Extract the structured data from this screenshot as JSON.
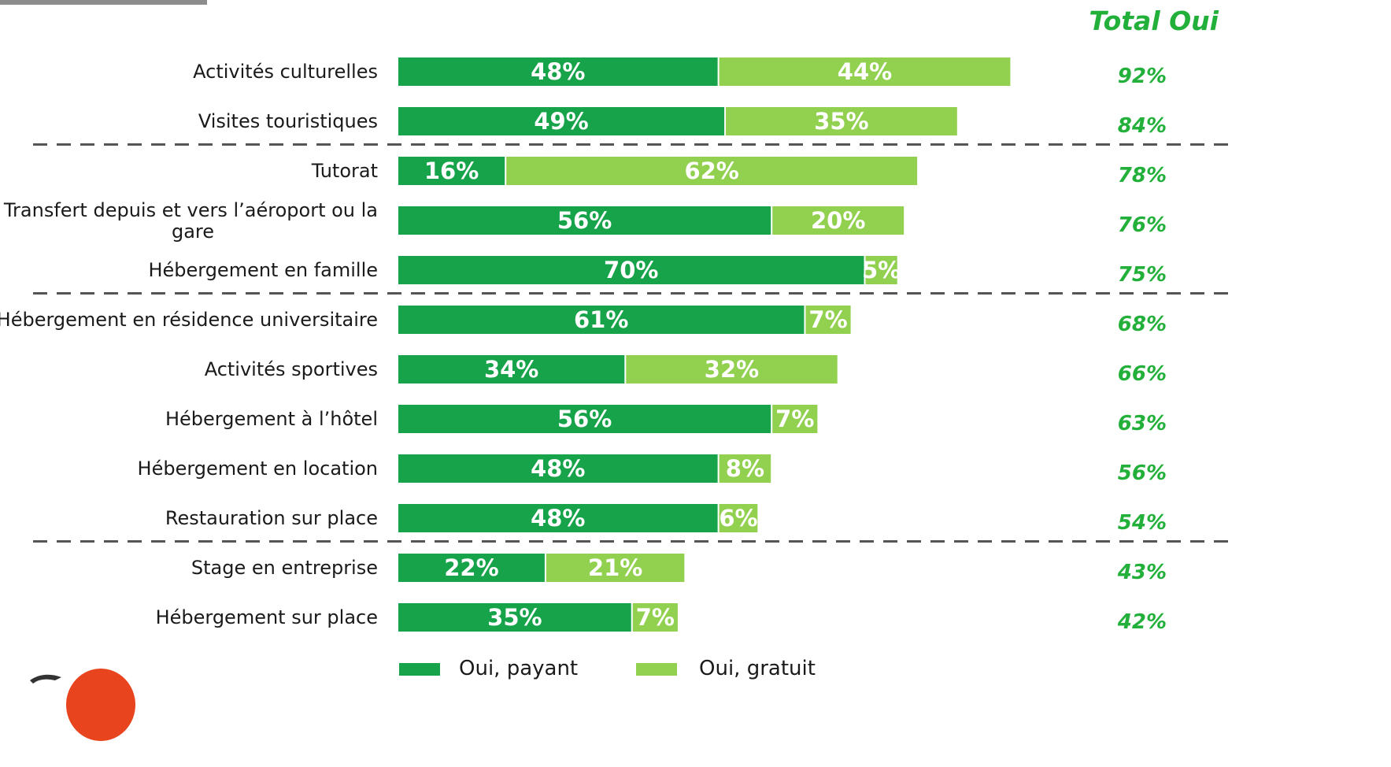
{
  "chart_data": {
    "type": "bar",
    "orientation": "horizontal",
    "stacked": true,
    "total_header": "Total Oui",
    "categories": [
      "Activités culturelles",
      "Visites touristiques",
      "Tutorat",
      "Transfert depuis et vers l’aéroport ou la gare",
      "Hébergement en famille",
      "Hébergement en résidence universitaire",
      "Activités sportives",
      "Hébergement à l’hôtel",
      "Hébergement en location",
      "Restauration sur place",
      "Stage en entreprise",
      "Hébergement sur place"
    ],
    "series": [
      {
        "name": "Oui, payant",
        "color": "#16a34a",
        "values": [
          48,
          49,
          16,
          56,
          70,
          61,
          34,
          56,
          48,
          48,
          22,
          35
        ]
      },
      {
        "name": "Oui, gratuit",
        "color": "#92d050",
        "values": [
          44,
          35,
          62,
          20,
          5,
          7,
          32,
          7,
          8,
          6,
          21,
          7
        ]
      }
    ],
    "totals": [
      92,
      84,
      78,
      76,
      75,
      68,
      66,
      63,
      56,
      54,
      43,
      42
    ],
    "value_suffix": "%",
    "separators_after": [
      1,
      4,
      9
    ],
    "legend_position": "bottom",
    "colors": {
      "payant": "#16a34a",
      "gratuit": "#92d050",
      "total_text": "#22b03a",
      "separator": "#555555",
      "logo_accent": "#e8451f"
    }
  }
}
